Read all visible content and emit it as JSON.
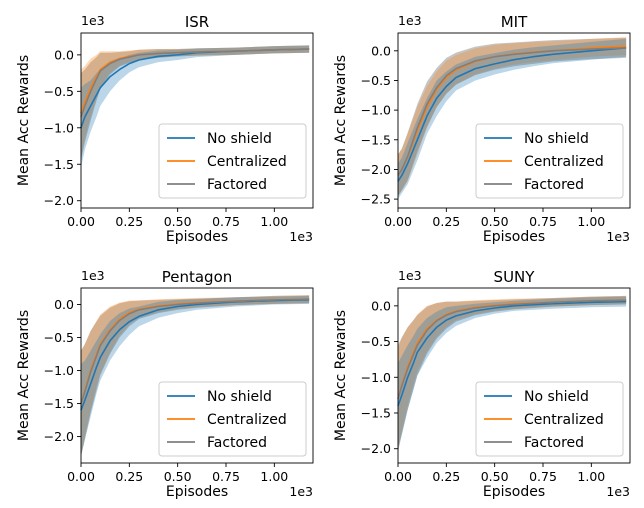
{
  "chart_data": [
    {
      "type": "line",
      "title": "ISR",
      "xlabel": "Episodes",
      "ylabel": "Mean Acc Rewards",
      "x_offset_label": "1e3",
      "y_offset_label": "1e3",
      "xlim": [
        0,
        1.2
      ],
      "ylim": [
        -2.1,
        0.3
      ],
      "xticks": [
        "0.00",
        "0.25",
        "0.50",
        "0.75",
        "1.00"
      ],
      "yticks": [
        "-2.0",
        "-1.5",
        "-1.0",
        "-0.5",
        "0.0"
      ],
      "legend_position": "lower-right",
      "series": [
        {
          "name": "No shield",
          "color": "#1f77b4",
          "x": [
            0,
            0.02,
            0.05,
            0.08,
            0.1,
            0.15,
            0.2,
            0.25,
            0.3,
            0.4,
            0.5,
            0.6,
            0.8,
            1.0,
            1.18
          ],
          "y": [
            -1.0,
            -0.85,
            -0.7,
            -0.55,
            -0.45,
            -0.3,
            -0.2,
            -0.12,
            -0.07,
            -0.02,
            0.0,
            0.03,
            0.05,
            0.07,
            0.08
          ],
          "band": [
            0.55,
            0.45,
            0.35,
            0.3,
            0.25,
            0.2,
            0.15,
            0.12,
            0.1,
            0.08,
            0.07,
            0.06,
            0.05,
            0.05,
            0.05
          ]
        },
        {
          "name": "Centralized",
          "color": "#ff7f0e",
          "x": [
            0,
            0.02,
            0.05,
            0.08,
            0.1,
            0.15,
            0.2,
            0.25,
            0.3,
            0.4,
            0.5,
            0.6,
            0.8,
            1.0,
            1.18
          ],
          "y": [
            -0.8,
            -0.65,
            -0.45,
            -0.3,
            -0.2,
            -0.1,
            -0.05,
            -0.02,
            0.0,
            0.02,
            0.03,
            0.04,
            0.05,
            0.07,
            0.08
          ],
          "band": [
            0.6,
            0.5,
            0.4,
            0.3,
            0.25,
            0.15,
            0.1,
            0.08,
            0.07,
            0.06,
            0.05,
            0.05,
            0.05,
            0.05,
            0.05
          ]
        },
        {
          "name": "Factored",
          "color": "#7f7f7f",
          "x": [
            0,
            0.02,
            0.05,
            0.08,
            0.1,
            0.15,
            0.2,
            0.25,
            0.3,
            0.4,
            0.5,
            0.6,
            0.8,
            1.0,
            1.18
          ],
          "y": [
            -0.85,
            -0.7,
            -0.5,
            -0.33,
            -0.22,
            -0.12,
            -0.06,
            -0.03,
            0.0,
            0.02,
            0.03,
            0.04,
            0.05,
            0.07,
            0.08
          ],
          "band": [
            0.6,
            0.5,
            0.4,
            0.3,
            0.25,
            0.15,
            0.1,
            0.08,
            0.07,
            0.06,
            0.05,
            0.05,
            0.05,
            0.05,
            0.05
          ]
        }
      ]
    },
    {
      "type": "line",
      "title": "MIT",
      "xlabel": "Episodes",
      "ylabel": "Mean Acc Rewards",
      "x_offset_label": "1e3",
      "y_offset_label": "1e3",
      "xlim": [
        0,
        1.2
      ],
      "ylim": [
        -2.65,
        0.3
      ],
      "xticks": [
        "0.00",
        "0.25",
        "0.50",
        "0.75",
        "1.00"
      ],
      "yticks": [
        "-2.5",
        "-2.0",
        "-1.5",
        "-1.0",
        "-0.5",
        "0.0"
      ],
      "legend_position": "lower-right",
      "series": [
        {
          "name": "No shield",
          "color": "#1f77b4",
          "x": [
            0,
            0.02,
            0.05,
            0.1,
            0.15,
            0.2,
            0.25,
            0.3,
            0.4,
            0.5,
            0.6,
            0.7,
            0.8,
            1.0,
            1.18
          ],
          "y": [
            -2.2,
            -2.1,
            -1.9,
            -1.5,
            -1.1,
            -0.8,
            -0.6,
            -0.45,
            -0.3,
            -0.22,
            -0.15,
            -0.1,
            -0.06,
            0.0,
            0.05
          ],
          "band": [
            0.3,
            0.3,
            0.35,
            0.35,
            0.3,
            0.3,
            0.25,
            0.22,
            0.2,
            0.18,
            0.17,
            0.16,
            0.15,
            0.15,
            0.15
          ]
        },
        {
          "name": "Centralized",
          "color": "#ff7f0e",
          "x": [
            0,
            0.02,
            0.05,
            0.1,
            0.15,
            0.2,
            0.25,
            0.3,
            0.4,
            0.5,
            0.6,
            0.7,
            0.8,
            1.0,
            1.18
          ],
          "y": [
            -2.1,
            -2.0,
            -1.8,
            -1.35,
            -0.95,
            -0.65,
            -0.45,
            -0.32,
            -0.18,
            -0.1,
            -0.05,
            -0.02,
            0.0,
            0.05,
            0.08
          ],
          "band": [
            0.35,
            0.35,
            0.4,
            0.4,
            0.35,
            0.3,
            0.28,
            0.25,
            0.22,
            0.2,
            0.18,
            0.17,
            0.16,
            0.15,
            0.15
          ]
        },
        {
          "name": "Factored",
          "color": "#7f7f7f",
          "x": [
            0,
            0.02,
            0.05,
            0.1,
            0.15,
            0.2,
            0.25,
            0.3,
            0.4,
            0.5,
            0.6,
            0.7,
            0.8,
            1.0,
            1.18
          ],
          "y": [
            -2.1,
            -2.0,
            -1.78,
            -1.3,
            -0.9,
            -0.62,
            -0.42,
            -0.3,
            -0.17,
            -0.1,
            -0.06,
            -0.03,
            0.0,
            0.03,
            0.05
          ],
          "band": [
            0.35,
            0.35,
            0.4,
            0.4,
            0.38,
            0.33,
            0.3,
            0.27,
            0.24,
            0.22,
            0.2,
            0.19,
            0.18,
            0.17,
            0.17
          ]
        }
      ]
    },
    {
      "type": "line",
      "title": "Pentagon",
      "xlabel": "Episodes",
      "ylabel": "Mean Acc Rewards",
      "x_offset_label": "1e3",
      "y_offset_label": "1e3",
      "xlim": [
        0,
        1.2
      ],
      "ylim": [
        -2.4,
        0.25
      ],
      "xticks": [
        "0.00",
        "0.25",
        "0.50",
        "0.75",
        "1.00"
      ],
      "yticks": [
        "-2.0",
        "-1.5",
        "-1.0",
        "-0.5",
        "0.0"
      ],
      "legend_position": "lower-right",
      "series": [
        {
          "name": "No shield",
          "color": "#1f77b4",
          "x": [
            0,
            0.02,
            0.05,
            0.08,
            0.1,
            0.15,
            0.2,
            0.25,
            0.3,
            0.4,
            0.5,
            0.6,
            0.8,
            1.0,
            1.18
          ],
          "y": [
            -1.6,
            -1.45,
            -1.2,
            -0.95,
            -0.8,
            -0.55,
            -0.38,
            -0.26,
            -0.18,
            -0.08,
            -0.03,
            0.0,
            0.04,
            0.06,
            0.07
          ],
          "band": [
            0.7,
            0.6,
            0.5,
            0.4,
            0.35,
            0.3,
            0.25,
            0.2,
            0.15,
            0.12,
            0.1,
            0.08,
            0.07,
            0.06,
            0.06
          ]
        },
        {
          "name": "Centralized",
          "color": "#ff7f0e",
          "x": [
            0,
            0.02,
            0.05,
            0.08,
            0.1,
            0.15,
            0.2,
            0.25,
            0.3,
            0.4,
            0.5,
            0.6,
            0.8,
            1.0,
            1.18
          ],
          "y": [
            -1.5,
            -1.3,
            -1.0,
            -0.75,
            -0.6,
            -0.38,
            -0.22,
            -0.12,
            -0.07,
            -0.02,
            0.01,
            0.03,
            0.05,
            0.07,
            0.08
          ],
          "band": [
            0.8,
            0.7,
            0.6,
            0.5,
            0.45,
            0.35,
            0.25,
            0.18,
            0.13,
            0.1,
            0.08,
            0.07,
            0.06,
            0.06,
            0.06
          ]
        },
        {
          "name": "Factored",
          "color": "#7f7f7f",
          "x": [
            0,
            0.02,
            0.05,
            0.08,
            0.1,
            0.15,
            0.2,
            0.25,
            0.3,
            0.4,
            0.5,
            0.6,
            0.8,
            1.0,
            1.18
          ],
          "y": [
            -1.5,
            -1.32,
            -1.02,
            -0.78,
            -0.62,
            -0.4,
            -0.24,
            -0.14,
            -0.08,
            -0.03,
            0.0,
            0.02,
            0.05,
            0.07,
            0.08
          ],
          "band": [
            0.8,
            0.72,
            0.62,
            0.52,
            0.45,
            0.35,
            0.26,
            0.19,
            0.14,
            0.1,
            0.08,
            0.07,
            0.06,
            0.06,
            0.06
          ]
        }
      ]
    },
    {
      "type": "line",
      "title": "SUNY",
      "xlabel": "Episodes",
      "ylabel": "Mean Acc Rewards",
      "x_offset_label": "1e3",
      "y_offset_label": "1e3",
      "xlim": [
        0,
        1.2
      ],
      "ylim": [
        -2.2,
        0.25
      ],
      "xticks": [
        "0.00",
        "0.25",
        "0.50",
        "0.75",
        "1.00"
      ],
      "yticks": [
        "-2.0",
        "-1.5",
        "-1.0",
        "-0.5",
        "0.0"
      ],
      "legend_position": "lower-right",
      "series": [
        {
          "name": "No shield",
          "color": "#1f77b4",
          "x": [
            0,
            0.02,
            0.05,
            0.08,
            0.1,
            0.15,
            0.2,
            0.25,
            0.3,
            0.4,
            0.5,
            0.6,
            0.8,
            1.0,
            1.18
          ],
          "y": [
            -1.4,
            -1.25,
            -1.0,
            -0.8,
            -0.65,
            -0.45,
            -0.3,
            -0.2,
            -0.14,
            -0.07,
            -0.03,
            0.0,
            0.03,
            0.05,
            0.06
          ],
          "band": [
            0.6,
            0.55,
            0.45,
            0.38,
            0.33,
            0.28,
            0.22,
            0.18,
            0.14,
            0.1,
            0.08,
            0.07,
            0.07,
            0.07,
            0.07
          ]
        },
        {
          "name": "Centralized",
          "color": "#ff7f0e",
          "x": [
            0,
            0.02,
            0.05,
            0.08,
            0.1,
            0.15,
            0.2,
            0.25,
            0.3,
            0.4,
            0.5,
            0.6,
            0.8,
            1.0,
            1.18
          ],
          "y": [
            -1.3,
            -1.1,
            -0.85,
            -0.65,
            -0.52,
            -0.32,
            -0.2,
            -0.12,
            -0.07,
            -0.02,
            0.01,
            0.03,
            0.05,
            0.07,
            0.08
          ],
          "band": [
            0.7,
            0.65,
            0.55,
            0.45,
            0.4,
            0.32,
            0.24,
            0.18,
            0.13,
            0.1,
            0.08,
            0.07,
            0.06,
            0.06,
            0.06
          ]
        },
        {
          "name": "Factored",
          "color": "#7f7f7f",
          "x": [
            0,
            0.02,
            0.05,
            0.08,
            0.1,
            0.15,
            0.2,
            0.25,
            0.3,
            0.4,
            0.5,
            0.6,
            0.8,
            1.0,
            1.18
          ],
          "y": [
            -1.3,
            -1.12,
            -0.88,
            -0.68,
            -0.55,
            -0.34,
            -0.21,
            -0.13,
            -0.08,
            -0.03,
            0.0,
            0.02,
            0.05,
            0.07,
            0.08
          ],
          "band": [
            0.75,
            0.68,
            0.58,
            0.48,
            0.42,
            0.33,
            0.25,
            0.19,
            0.14,
            0.1,
            0.08,
            0.07,
            0.06,
            0.06,
            0.06
          ]
        }
      ]
    }
  ]
}
